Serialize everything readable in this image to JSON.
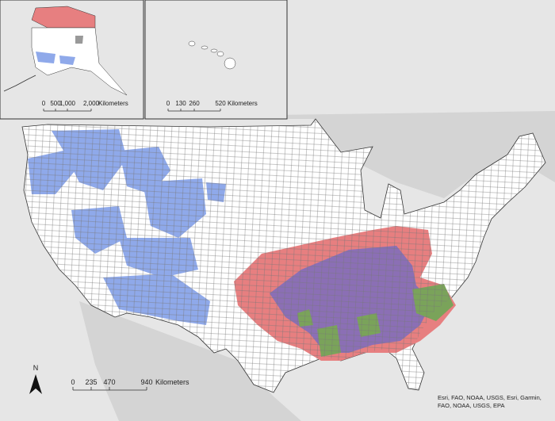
{
  "alaska_inset": {
    "scale_labels": [
      "0",
      "500",
      "1,000",
      "2,000"
    ],
    "unit": "Kilometers"
  },
  "hawaii_inset": {
    "scale_labels": [
      "0",
      "130",
      "260",
      "520"
    ],
    "unit": "Kilometers"
  },
  "main_map": {
    "north_arrow": "N",
    "scale_labels": [
      "0",
      "235",
      "470",
      "940"
    ],
    "unit": "Kilometers",
    "attribution": "Esri, FAO, NOAA, USGS, Esri, Garmin, FAO, NOAA, USGS, EPA"
  }
}
